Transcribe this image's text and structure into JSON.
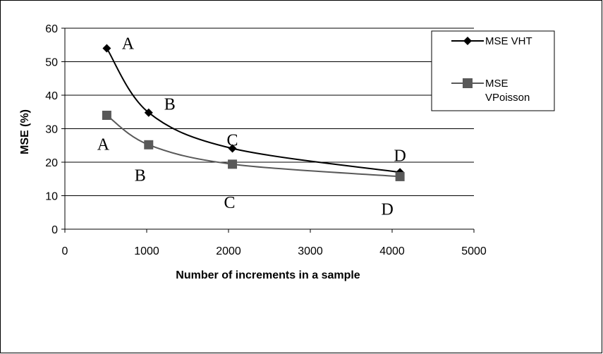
{
  "chart_data": {
    "type": "line",
    "title": "",
    "xlabel": "Number of increments in a sample",
    "ylabel": "MSE (%)",
    "xlim": [
      0,
      5000
    ],
    "ylim": [
      0,
      60
    ],
    "xticks": [
      0,
      1000,
      2000,
      3000,
      4000,
      5000
    ],
    "yticks": [
      0,
      10,
      20,
      30,
      40,
      50,
      60
    ],
    "grid": "horizontal",
    "legend_position": "top-right",
    "series": [
      {
        "name": "MSE VHT",
        "marker": "diamond",
        "color": "#000000",
        "x": [
          512,
          1024,
          2048,
          4096
        ],
        "y": [
          54,
          34.8,
          24.1,
          17
        ],
        "point_labels": [
          "A",
          "B",
          "C",
          "D"
        ]
      },
      {
        "name": "MSE VPoisson",
        "marker": "square",
        "color": "#595959",
        "x": [
          512,
          1024,
          2048,
          4096
        ],
        "y": [
          34,
          25.2,
          19.4,
          15.7
        ],
        "point_labels": [
          "A",
          "B",
          "C",
          "D"
        ]
      }
    ],
    "legend": {
      "entries": [
        {
          "lines": [
            "MSE VHT"
          ]
        },
        {
          "lines": [
            "MSE",
            "VPoisson"
          ]
        }
      ]
    }
  }
}
